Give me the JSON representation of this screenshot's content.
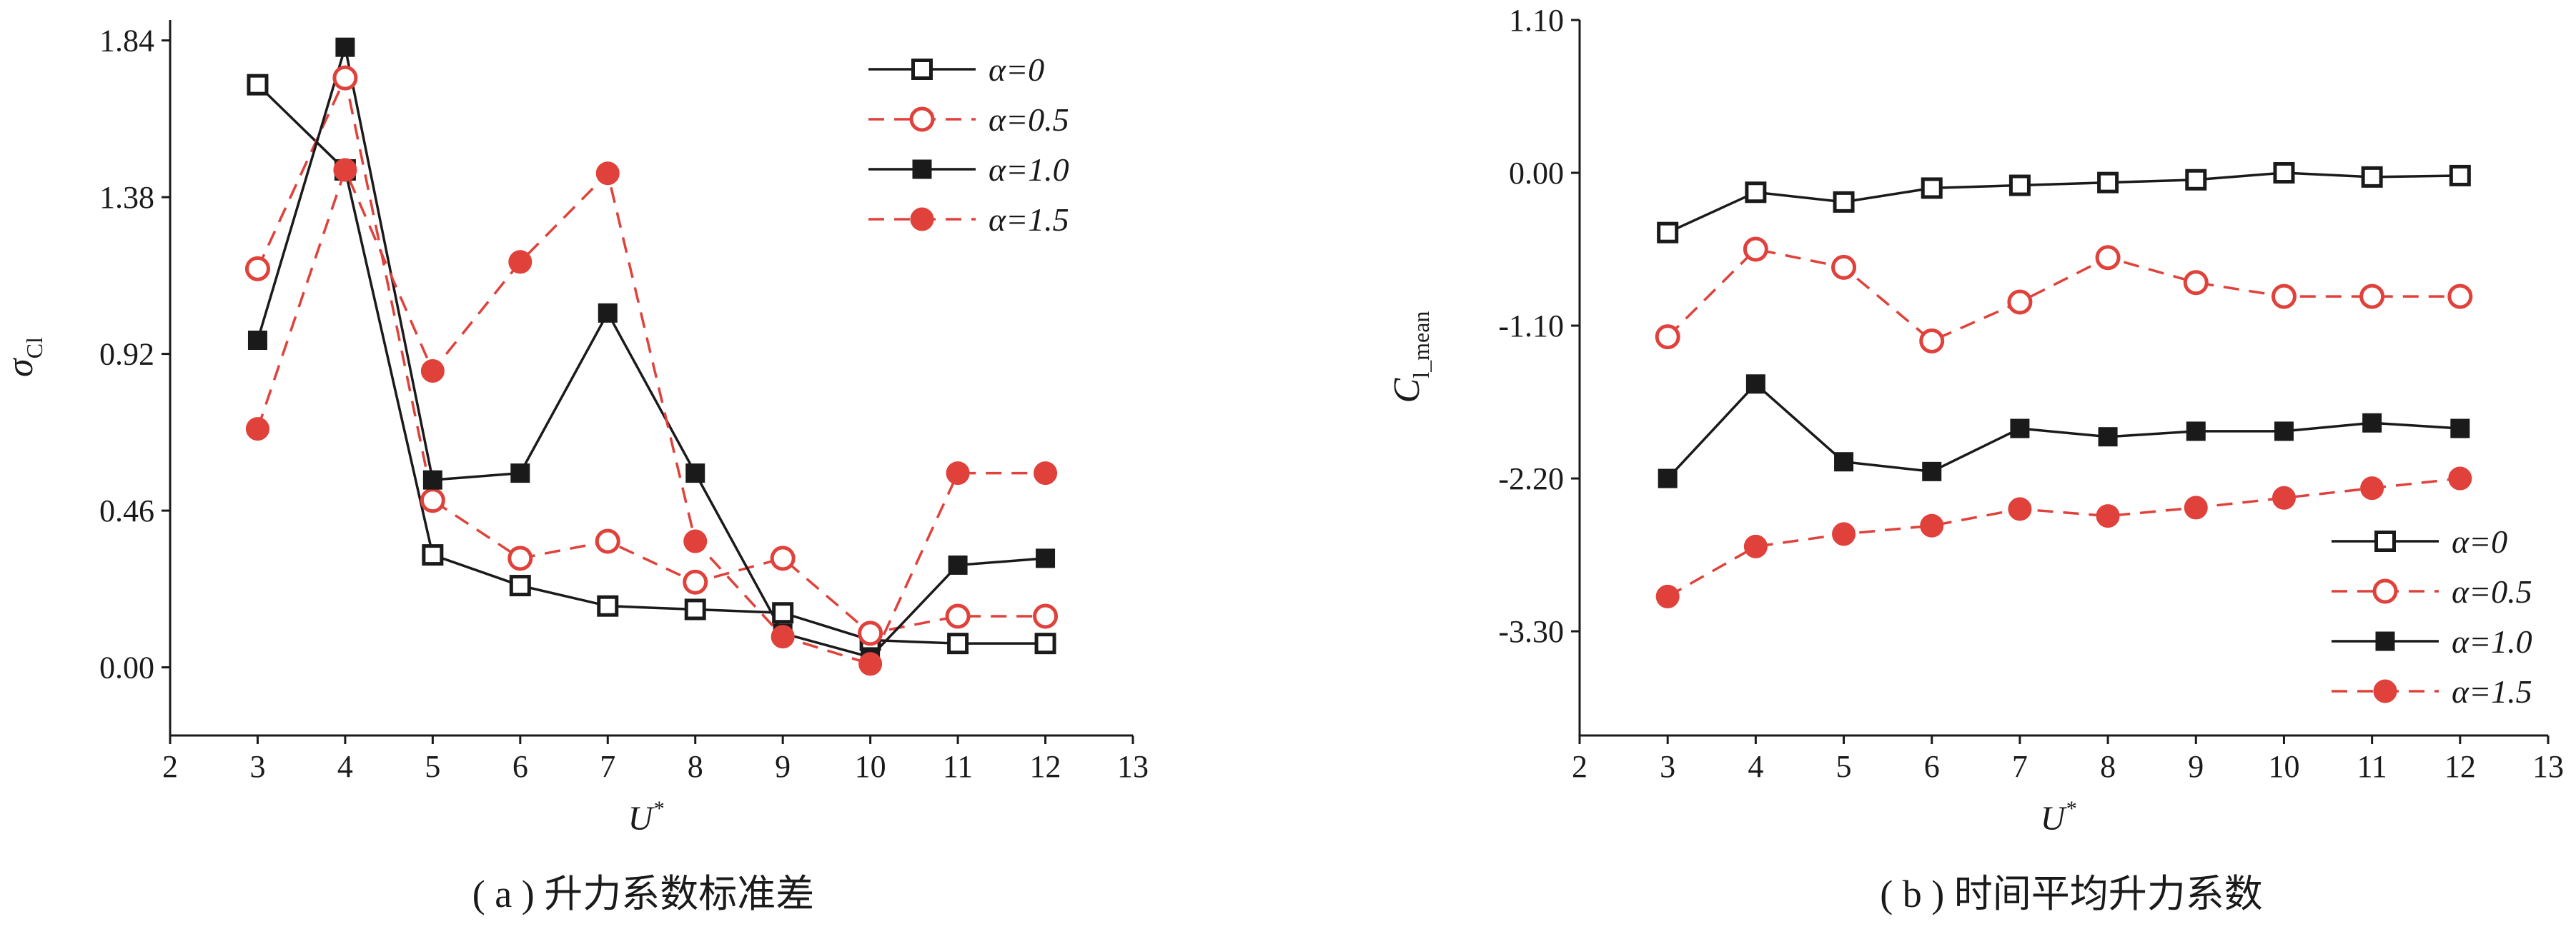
{
  "colors": {
    "black": "#1a1a1a",
    "red": "#e0413a"
  },
  "chart_data": [
    {
      "type": "line",
      "caption": "( a ) 升力系数标准差",
      "xlabel_main": "U",
      "xlabel_sup": "*",
      "ylabel_main": "σ",
      "ylabel_sub": "Cl",
      "xlim": [
        2,
        13
      ],
      "ylim": [
        -0.2,
        1.9
      ],
      "xticks": [
        2,
        3,
        4,
        5,
        6,
        7,
        8,
        9,
        10,
        11,
        12,
        13
      ],
      "yticks": [
        0.0,
        0.46,
        0.92,
        1.38,
        1.84
      ],
      "ytick_labels": [
        "0.00",
        "0.46",
        "0.92",
        "1.38",
        "1.84"
      ],
      "legend_position": "top-right",
      "x": [
        3,
        4,
        5,
        6,
        7,
        8,
        9,
        10,
        11,
        12
      ],
      "series": [
        {
          "name": "α=0",
          "marker": "open-square",
          "color": "#1a1a1a",
          "dash": false,
          "values": [
            1.71,
            1.46,
            0.33,
            0.24,
            0.18,
            0.17,
            0.16,
            0.08,
            0.07,
            0.07
          ]
        },
        {
          "name": "α=0.5",
          "marker": "open-circle",
          "color": "#e0413a",
          "dash": true,
          "values": [
            1.17,
            1.73,
            0.49,
            0.32,
            0.37,
            0.25,
            0.32,
            0.1,
            0.15,
            0.15
          ]
        },
        {
          "name": "α=1.0",
          "marker": "filled-square",
          "color": "#1a1a1a",
          "dash": false,
          "values": [
            0.96,
            1.82,
            0.55,
            0.57,
            1.04,
            0.57,
            0.1,
            0.03,
            0.3,
            0.32
          ]
        },
        {
          "name": "α=1.5",
          "marker": "filled-circle",
          "color": "#e0413a",
          "dash": true,
          "values": [
            0.7,
            1.46,
            0.87,
            1.19,
            1.45,
            0.37,
            0.09,
            0.01,
            0.57,
            0.57
          ]
        }
      ]
    },
    {
      "type": "line",
      "caption": "( b ) 时间平均升力系数",
      "xlabel_main": "U",
      "xlabel_sup": "*",
      "ylabel_main": "C",
      "ylabel_sub": "l_mean",
      "xlim": [
        2,
        13
      ],
      "ylim": [
        -4.05,
        1.1
      ],
      "xticks": [
        2,
        3,
        4,
        5,
        6,
        7,
        8,
        9,
        10,
        11,
        12,
        13
      ],
      "yticks": [
        -3.3,
        -2.2,
        -1.1,
        0.0,
        1.1
      ],
      "ytick_labels": [
        "-3.30",
        "-2.20",
        "-1.10",
        "0.00",
        "1.10"
      ],
      "legend_position": "bottom-right",
      "x": [
        3,
        4,
        5,
        6,
        7,
        8,
        9,
        10,
        11,
        12
      ],
      "series": [
        {
          "name": "α=0",
          "marker": "open-square",
          "color": "#1a1a1a",
          "dash": false,
          "values": [
            -0.43,
            -0.14,
            -0.21,
            -0.11,
            -0.09,
            -0.07,
            -0.05,
            0.0,
            -0.03,
            -0.02
          ]
        },
        {
          "name": "α=0.5",
          "marker": "open-circle",
          "color": "#e0413a",
          "dash": true,
          "values": [
            -1.18,
            -0.55,
            -0.68,
            -1.21,
            -0.93,
            -0.61,
            -0.79,
            -0.89,
            -0.89,
            -0.89
          ]
        },
        {
          "name": "α=1.0",
          "marker": "filled-square",
          "color": "#1a1a1a",
          "dash": false,
          "values": [
            -2.2,
            -1.52,
            -2.08,
            -2.15,
            -1.84,
            -1.9,
            -1.86,
            -1.86,
            -1.8,
            -1.84
          ]
        },
        {
          "name": "α=1.5",
          "marker": "filled-circle",
          "color": "#e0413a",
          "dash": true,
          "values": [
            -3.05,
            -2.69,
            -2.6,
            -2.54,
            -2.42,
            -2.47,
            -2.41,
            -2.34,
            -2.27,
            -2.2
          ]
        }
      ]
    }
  ]
}
